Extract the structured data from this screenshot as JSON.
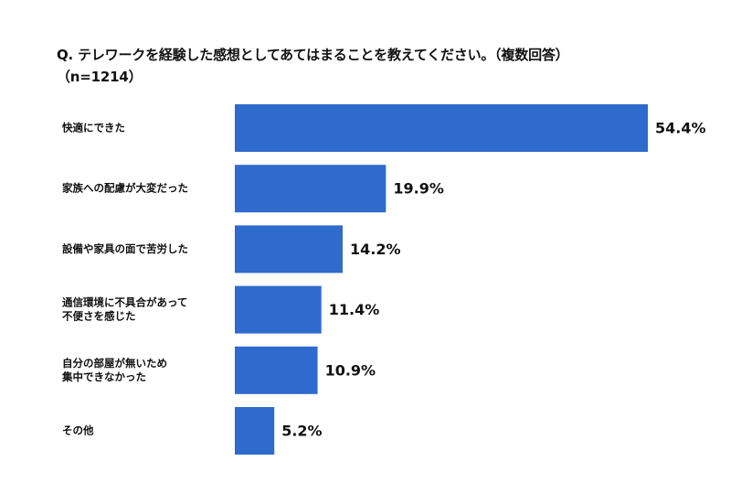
{
  "chart_data": {
    "type": "bar",
    "orientation": "horizontal",
    "title": "Q. テレワークを経験した感想としてあてはまることを教えてください。（複数回答）",
    "subtitle": "（n=1214）",
    "categories": [
      "快適にできた",
      "家族への配慮が大変だった",
      "設備や家具の面で苦労した",
      "通信環境に不具合があって\n不便さを感じた",
      "自分の部屋が無いため\n集中できなかった",
      "その他"
    ],
    "values": [
      54.4,
      19.9,
      14.2,
      11.4,
      10.9,
      5.2
    ],
    "value_labels": [
      "54.4%",
      "19.9%",
      "14.2%",
      "11.4%",
      "10.9%",
      "5.2%"
    ],
    "unit": "%",
    "xlim": [
      0,
      54.4
    ],
    "bar_color": "#2f6bcc",
    "grid": false,
    "legend": "none"
  }
}
